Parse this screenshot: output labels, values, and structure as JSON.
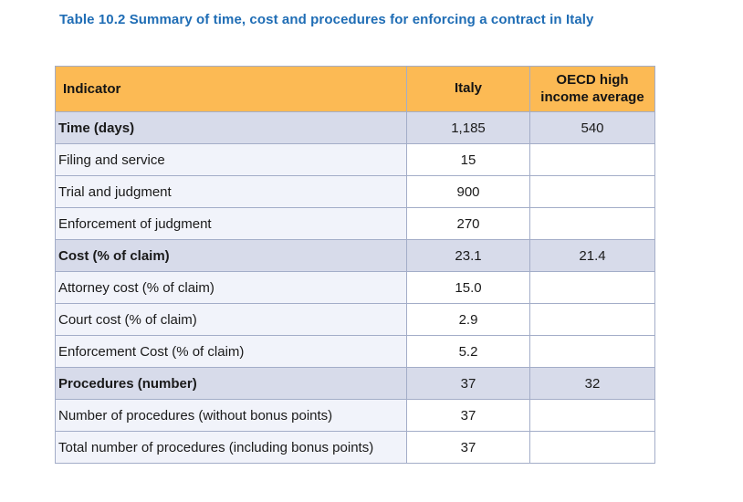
{
  "title": "Table 10.2 Summary of time, cost and procedures for enforcing a contract in Italy",
  "table": {
    "columns": {
      "indicator": "Indicator",
      "italy": "Italy",
      "oecd": "OECD high income average"
    },
    "rows": [
      {
        "indicator": "Time (days)",
        "italy": "1,185",
        "oecd": "540",
        "section": true
      },
      {
        "indicator": "Filing and service",
        "italy": "15",
        "oecd": "",
        "section": false
      },
      {
        "indicator": "Trial and judgment",
        "italy": "900",
        "oecd": "",
        "section": false
      },
      {
        "indicator": "Enforcement of judgment",
        "italy": "270",
        "oecd": "",
        "section": false
      },
      {
        "indicator": "Cost (% of claim)",
        "italy": "23.1",
        "oecd": "21.4",
        "section": true
      },
      {
        "indicator": "Attorney cost (% of claim)",
        "italy": "15.0",
        "oecd": "",
        "section": false
      },
      {
        "indicator": "Court cost (% of claim)",
        "italy": "2.9",
        "oecd": "",
        "section": false
      },
      {
        "indicator": "Enforcement Cost (% of claim)",
        "italy": "5.2",
        "oecd": "",
        "section": false
      },
      {
        "indicator": "Procedures (number)",
        "italy": "37",
        "oecd": "32",
        "section": true
      },
      {
        "indicator": "Number of procedures (without bonus points)",
        "italy": "37",
        "oecd": "",
        "section": false
      },
      {
        "indicator": "Total number of procedures (including bonus points)",
        "italy": "37",
        "oecd": "",
        "section": false
      }
    ]
  },
  "colors": {
    "header_bg": "#FCBA54",
    "section_row_bg": "#D7DBEA",
    "indicator_cell_bg": "#F1F3FA",
    "border": "#A3ADC8",
    "title_text": "#1F6DB5"
  }
}
